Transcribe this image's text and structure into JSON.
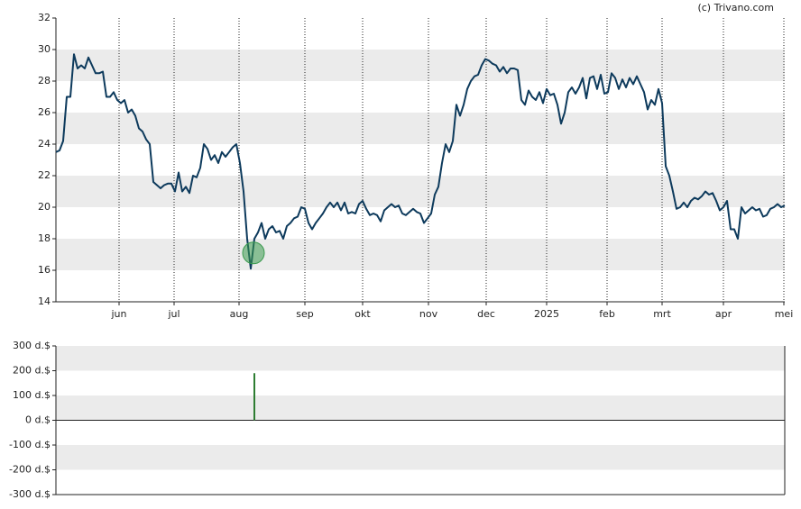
{
  "chart_data": [
    {
      "type": "line",
      "source": "(c) Trivano.com",
      "color": "#0d3a5c",
      "band_color": "#ebebeb",
      "grid": true,
      "values": [
        23.5,
        23.6,
        24.2,
        27.0,
        27.0,
        29.7,
        28.8,
        29.0,
        28.8,
        29.5,
        29.0,
        28.5,
        28.5,
        28.6,
        27.0,
        27.0,
        27.3,
        26.8,
        26.6,
        26.8,
        26.0,
        26.2,
        25.8,
        25.0,
        24.8,
        24.3,
        24.0,
        21.6,
        21.4,
        21.2,
        21.4,
        21.5,
        21.5,
        21.0,
        22.2,
        21.0,
        21.3,
        20.9,
        22.0,
        21.9,
        22.5,
        24.0,
        23.7,
        23.0,
        23.3,
        22.8,
        23.5,
        23.2,
        23.5,
        23.8,
        24.0,
        22.8,
        21.0,
        18.0,
        16.1,
        18.0,
        18.4,
        19.0,
        18.0,
        18.6,
        18.8,
        18.4,
        18.5,
        18.0,
        18.8,
        19.0,
        19.3,
        19.4,
        20.0,
        19.9,
        19.0,
        18.6,
        19.0,
        19.3,
        19.6,
        20.0,
        20.3,
        20.0,
        20.3,
        19.8,
        20.3,
        19.6,
        19.7,
        19.6,
        20.2,
        20.4,
        19.9,
        19.5,
        19.6,
        19.5,
        19.1,
        19.8,
        20.0,
        20.2,
        20.0,
        20.1,
        19.6,
        19.5,
        19.7,
        19.9,
        19.7,
        19.6,
        19.0,
        19.3,
        19.6,
        20.8,
        21.3,
        22.8,
        24.0,
        23.5,
        24.2,
        26.5,
        25.8,
        26.5,
        27.5,
        28.0,
        28.3,
        28.4,
        29.0,
        29.4,
        29.3,
        29.1,
        29.0,
        28.6,
        28.9,
        28.5,
        28.8,
        28.8,
        28.7,
        26.8,
        26.5,
        27.4,
        27.0,
        26.8,
        27.3,
        26.6,
        27.5,
        27.1,
        27.2,
        26.5,
        25.3,
        26.0,
        27.3,
        27.6,
        27.2,
        27.6,
        28.2,
        26.9,
        28.2,
        28.3,
        27.5,
        28.4,
        27.2,
        27.3,
        28.5,
        28.2,
        27.5,
        28.1,
        27.6,
        28.2,
        27.8,
        28.3,
        27.8,
        27.3,
        26.2,
        26.8,
        26.5,
        27.5,
        26.6,
        22.6,
        22.0,
        21.0,
        19.9,
        20.0,
        20.3,
        20.0,
        20.4,
        20.6,
        20.5,
        20.7,
        21.0,
        20.8,
        20.9,
        20.4,
        19.8,
        20.0,
        20.4,
        18.6,
        18.6,
        18.0,
        20.0,
        19.6,
        19.8,
        20.0,
        19.8,
        19.9,
        19.4,
        19.5,
        19.9,
        20.0,
        20.2,
        20.0,
        20.1
      ],
      "markers": [
        {
          "x": 54.75,
          "value": 17.1,
          "color": "#3a9a4e"
        }
      ],
      "xlim": [
        0,
        202
      ],
      "xticks": [
        {
          "value": 17.5,
          "label": "jun"
        },
        {
          "value": 32.75,
          "label": "jul"
        },
        {
          "value": 50.75,
          "label": "aug"
        },
        {
          "value": 69,
          "label": "sep"
        },
        {
          "value": 85,
          "label": "okt"
        },
        {
          "value": 103.25,
          "label": "nov"
        },
        {
          "value": 119.25,
          "label": "dec"
        },
        {
          "value": 136,
          "label": "2025"
        },
        {
          "value": 152.75,
          "label": "feb"
        },
        {
          "value": 168,
          "label": "mrt"
        },
        {
          "value": 185,
          "label": "apr"
        },
        {
          "value": 201.75,
          "label": "mei"
        }
      ],
      "ylim": [
        14,
        32
      ],
      "yticks": [
        14,
        16,
        18,
        20,
        22,
        24,
        26,
        28,
        30,
        32
      ]
    },
    {
      "type": "bar",
      "color": "#2e7d32",
      "band_color": "#ebebeb",
      "x": [
        55
      ],
      "values": [
        190
      ],
      "xlim": [
        0,
        202
      ],
      "ylim": [
        -300,
        300
      ],
      "yticks": [
        {
          "value": -300,
          "label": "-300 d.$"
        },
        {
          "value": -200,
          "label": "-200 d.$"
        },
        {
          "value": -100,
          "label": "-100 d.$"
        },
        {
          "value": 0,
          "label": "0 d.$"
        },
        {
          "value": 100,
          "label": "100 d.$"
        },
        {
          "value": 200,
          "label": "200 d.$"
        },
        {
          "value": 300,
          "label": "300 d.$"
        }
      ]
    }
  ]
}
